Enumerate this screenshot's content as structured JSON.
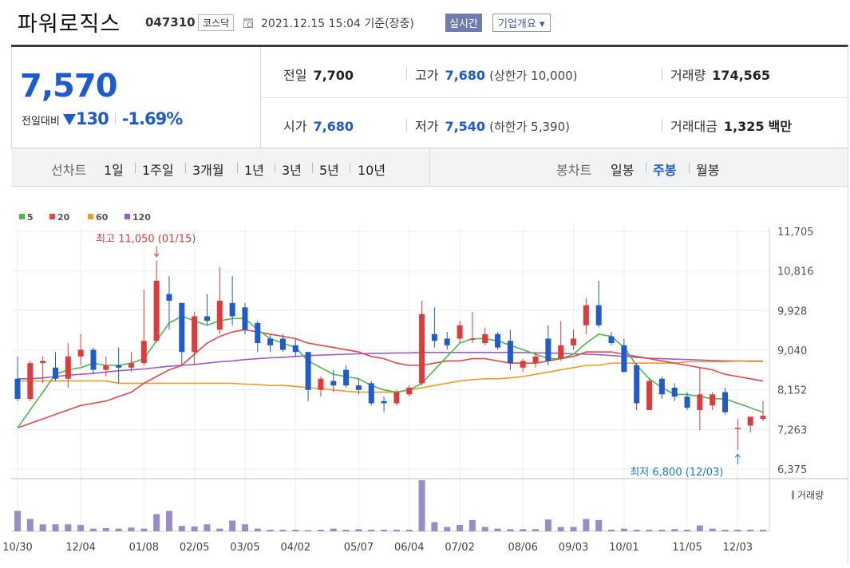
{
  "header": {
    "name": "파워로직스",
    "code": "047310",
    "market": "코스닥",
    "datetime": "2021.12.15 15:04 기준(장중)",
    "realtime": "실시간",
    "company_overview": "기업개요 ▾"
  },
  "quote": {
    "price": "7,570",
    "change_label": "전일대비",
    "change_value": "130",
    "change_rate": "-1.69%",
    "prev_close_label": "전일",
    "prev_close": "7,700",
    "high_label": "고가",
    "high": "7,680",
    "upper_limit": "(상한가 10,000)",
    "volume_label": "거래량",
    "volume": "174,565",
    "open_label": "시가",
    "open": "7,680",
    "low_label": "저가",
    "low": "7,540",
    "lower_limit": "(하한가 5,390)",
    "amount_label": "거래대금",
    "amount": "1,325",
    "amount_unit": "백만"
  },
  "period_tabs": {
    "line_label": "선차트",
    "line_items": [
      "1일",
      "1주일",
      "3개월",
      "1년",
      "3년",
      "5년",
      "10년"
    ],
    "candle_label": "봉차트",
    "candle_items": [
      "일봉",
      "주봉",
      "월봉"
    ],
    "candle_selected": "주봉"
  },
  "colors": {
    "up": "#e03a3a",
    "down": "#1f5bd0",
    "ma5": "#4fb94a",
    "ma20": "#e44848",
    "ma60": "#f09a2c",
    "ma120": "#9a5cc8",
    "volume": "#9a8cc9"
  },
  "chart_data": {
    "type": "candlestick",
    "legend": [
      "5",
      "20",
      "60",
      "120"
    ],
    "y_ticks": [
      "11,705",
      "10,816",
      "9,928",
      "9,040",
      "8,152",
      "7,263",
      "6,375"
    ],
    "y_range": [
      6375,
      11705
    ],
    "x_labels": [
      "10/30",
      "12/04",
      "01/08",
      "02/05",
      "03/05",
      "04/02",
      "05/07",
      "06/04",
      "07/02",
      "08/06",
      "09/03",
      "10/01",
      "11/05",
      "12/03"
    ],
    "x_label_index": [
      0,
      5,
      10,
      14,
      18,
      22,
      27,
      31,
      35,
      40,
      44,
      48,
      53,
      57
    ],
    "annotation_high": "최고 11,050 (01/15)",
    "annotation_low": "최저 6,800 (12/03)",
    "volume_label": "거래량",
    "candles": [
      {
        "o": 8400,
        "h": 8900,
        "l": 7900,
        "c": 7950
      },
      {
        "o": 7950,
        "h": 8800,
        "l": 7900,
        "c": 8750
      },
      {
        "o": 8750,
        "h": 8900,
        "l": 8300,
        "c": 8800
      },
      {
        "o": 8650,
        "h": 9000,
        "l": 8350,
        "c": 8400
      },
      {
        "o": 8400,
        "h": 9200,
        "l": 8200,
        "c": 8900
      },
      {
        "o": 8900,
        "h": 9400,
        "l": 8700,
        "c": 9050
      },
      {
        "o": 9050,
        "h": 9100,
        "l": 8500,
        "c": 8600
      },
      {
        "o": 8600,
        "h": 8900,
        "l": 8450,
        "c": 8700
      },
      {
        "o": 8700,
        "h": 9100,
        "l": 8300,
        "c": 8650
      },
      {
        "o": 8650,
        "h": 9000,
        "l": 8550,
        "c": 8750
      },
      {
        "o": 8750,
        "h": 10400,
        "l": 8700,
        "c": 9250
      },
      {
        "o": 9250,
        "h": 11050,
        "l": 9200,
        "c": 10600
      },
      {
        "o": 10300,
        "h": 10700,
        "l": 9500,
        "c": 10150
      },
      {
        "o": 10100,
        "h": 10100,
        "l": 8700,
        "c": 9000
      },
      {
        "o": 9000,
        "h": 9900,
        "l": 8700,
        "c": 9800
      },
      {
        "o": 9800,
        "h": 10300,
        "l": 9600,
        "c": 9700
      },
      {
        "o": 9500,
        "h": 10900,
        "l": 9400,
        "c": 10150
      },
      {
        "o": 10100,
        "h": 10700,
        "l": 9600,
        "c": 9800
      },
      {
        "o": 10000,
        "h": 10100,
        "l": 9400,
        "c": 9500
      },
      {
        "o": 9650,
        "h": 9700,
        "l": 9000,
        "c": 9200
      },
      {
        "o": 9300,
        "h": 9400,
        "l": 9000,
        "c": 9150
      },
      {
        "o": 9300,
        "h": 9400,
        "l": 9000,
        "c": 9050
      },
      {
        "o": 9150,
        "h": 9300,
        "l": 8900,
        "c": 9000
      },
      {
        "o": 9000,
        "h": 9000,
        "l": 7900,
        "c": 8150
      },
      {
        "o": 8150,
        "h": 8450,
        "l": 8000,
        "c": 8400
      },
      {
        "o": 8350,
        "h": 8600,
        "l": 8100,
        "c": 8250
      },
      {
        "o": 8600,
        "h": 8700,
        "l": 8200,
        "c": 8250
      },
      {
        "o": 8250,
        "h": 8400,
        "l": 8050,
        "c": 8150
      },
      {
        "o": 8300,
        "h": 8350,
        "l": 7800,
        "c": 7850
      },
      {
        "o": 7900,
        "h": 8000,
        "l": 7650,
        "c": 7850
      },
      {
        "o": 7850,
        "h": 8150,
        "l": 7800,
        "c": 8100
      },
      {
        "o": 8050,
        "h": 8250,
        "l": 8000,
        "c": 8200
      },
      {
        "o": 8300,
        "h": 10150,
        "l": 8250,
        "c": 9850
      },
      {
        "o": 9400,
        "h": 10000,
        "l": 9100,
        "c": 9250
      },
      {
        "o": 9300,
        "h": 9450,
        "l": 9050,
        "c": 9150
      },
      {
        "o": 9300,
        "h": 9700,
        "l": 9200,
        "c": 9600
      },
      {
        "o": 9300,
        "h": 9900,
        "l": 9200,
        "c": 9300
      },
      {
        "o": 9200,
        "h": 9550,
        "l": 9150,
        "c": 9400
      },
      {
        "o": 9400,
        "h": 9450,
        "l": 9050,
        "c": 9100
      },
      {
        "o": 9250,
        "h": 9500,
        "l": 8600,
        "c": 8750
      },
      {
        "o": 8650,
        "h": 8850,
        "l": 8550,
        "c": 8800
      },
      {
        "o": 8750,
        "h": 9000,
        "l": 8650,
        "c": 8900
      },
      {
        "o": 9300,
        "h": 9600,
        "l": 8700,
        "c": 8800
      },
      {
        "o": 8850,
        "h": 9700,
        "l": 8800,
        "c": 9150
      },
      {
        "o": 9150,
        "h": 9500,
        "l": 9050,
        "c": 9300
      },
      {
        "o": 9600,
        "h": 10200,
        "l": 9400,
        "c": 10050
      },
      {
        "o": 10050,
        "h": 10600,
        "l": 9550,
        "c": 9600
      },
      {
        "o": 9350,
        "h": 9450,
        "l": 9150,
        "c": 9200
      },
      {
        "o": 9150,
        "h": 9300,
        "l": 8550,
        "c": 8550
      },
      {
        "o": 8700,
        "h": 8750,
        "l": 7700,
        "c": 7850
      },
      {
        "o": 7700,
        "h": 8400,
        "l": 7700,
        "c": 8350
      },
      {
        "o": 8400,
        "h": 8450,
        "l": 7950,
        "c": 8050
      },
      {
        "o": 8200,
        "h": 8300,
        "l": 7900,
        "c": 8000
      },
      {
        "o": 8000,
        "h": 8100,
        "l": 7700,
        "c": 7750
      },
      {
        "o": 7700,
        "h": 8650,
        "l": 7250,
        "c": 8050
      },
      {
        "o": 7800,
        "h": 8100,
        "l": 7700,
        "c": 8050
      },
      {
        "o": 8100,
        "h": 8200,
        "l": 7600,
        "c": 7650
      },
      {
        "o": 7300,
        "h": 7500,
        "l": 6800,
        "c": 7300
      },
      {
        "o": 7350,
        "h": 7500,
        "l": 7200,
        "c": 7550
      },
      {
        "o": 7500,
        "h": 7900,
        "l": 7450,
        "c": 7570
      }
    ],
    "volume": [
      38,
      23,
      13,
      13,
      13,
      12,
      5,
      6,
      5,
      7,
      5,
      32,
      38,
      10,
      9,
      13,
      5,
      20,
      13,
      5,
      3,
      3,
      3,
      2,
      3,
      5,
      3,
      4,
      3,
      3,
      3,
      3,
      95,
      17,
      8,
      12,
      21,
      8,
      5,
      4,
      4,
      4,
      22,
      8,
      8,
      23,
      21,
      3,
      5,
      3,
      3,
      3,
      4,
      3,
      11,
      5,
      3,
      3,
      3,
      3
    ],
    "ma5": [
      7300,
      7700,
      8100,
      8500,
      8600,
      8650,
      8750,
      8700,
      8700,
      8750,
      8850,
      9250,
      9650,
      9800,
      9700,
      9600,
      9700,
      9750,
      9750,
      9500,
      9300,
      9200,
      9100,
      8800,
      8650,
      8500,
      8450,
      8400,
      8250,
      8150,
      8100,
      8150,
      8300,
      8600,
      8900,
      9200,
      9300,
      9300,
      9250,
      9150,
      9050,
      8950,
      8850,
      8850,
      8950,
      9200,
      9400,
      9350,
      9100,
      8700,
      8400,
      8200,
      8050,
      8050,
      8000,
      7950,
      7950,
      7850,
      7750,
      7650
    ],
    "ma20": [
      7300,
      7400,
      7500,
      7600,
      7700,
      7800,
      7850,
      7900,
      8000,
      8100,
      8300,
      8450,
      8600,
      8700,
      8950,
      9200,
      9350,
      9450,
      9500,
      9450,
      9400,
      9350,
      9300,
      9200,
      9150,
      9100,
      9050,
      9000,
      8900,
      8850,
      8750,
      8700,
      8700,
      8750,
      8800,
      8800,
      8850,
      8850,
      8800,
      8750,
      8750,
      8750,
      8800,
      8850,
      8900,
      9000,
      9000,
      9000,
      8950,
      8900,
      8850,
      8800,
      8750,
      8700,
      8650,
      8600,
      8500,
      8450,
      8400,
      8350
    ],
    "ma60": [
      8350,
      8350,
      8350,
      8350,
      8350,
      8350,
      8350,
      8350,
      8300,
      8300,
      8300,
      8300,
      8300,
      8300,
      8300,
      8300,
      8300,
      8300,
      8280,
      8270,
      8250,
      8250,
      8230,
      8200,
      8180,
      8150,
      8120,
      8100,
      8100,
      8100,
      8100,
      8150,
      8200,
      8250,
      8300,
      8350,
      8380,
      8400,
      8400,
      8420,
      8450,
      8500,
      8550,
      8600,
      8650,
      8700,
      8700,
      8750,
      8750,
      8750,
      8750,
      8750,
      8750,
      8780,
      8780,
      8780,
      8780,
      8800,
      8800,
      8800
    ],
    "ma120": [
      8400,
      8400,
      8420,
      8450,
      8480,
      8500,
      8520,
      8550,
      8580,
      8600,
      8620,
      8650,
      8680,
      8700,
      8720,
      8750,
      8780,
      8800,
      8830,
      8850,
      8870,
      8880,
      8900,
      8920,
      8930,
      8940,
      8950,
      8960,
      8970,
      8970,
      8980,
      8980,
      8990,
      8990,
      8990,
      8990,
      8990,
      8990,
      8990,
      8990,
      8990,
      8980,
      8980,
      8970,
      8960,
      8950,
      8940,
      8920,
      8900,
      8880,
      8860,
      8850,
      8840,
      8830,
      8820,
      8810,
      8800,
      8800,
      8790,
      8790
    ]
  }
}
